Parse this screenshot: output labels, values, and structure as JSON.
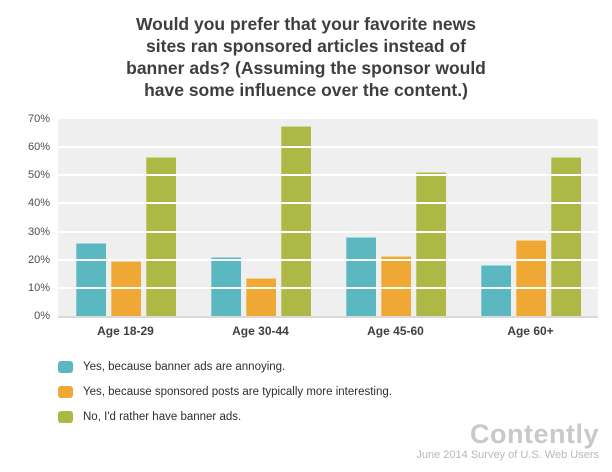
{
  "header": {
    "title_lines": [
      "Would you prefer that your favorite news",
      "sites ran sponsored articles instead of",
      "banner ads? (Assuming the sponsor would",
      "have some influence over the content.)"
    ]
  },
  "chart_data": {
    "type": "bar",
    "title": "Would you prefer that your favorite news sites ran sponsored articles instead of banner ads? (Assuming the sponsor would have some influence over the content.)",
    "categories": [
      "Age 18-29",
      "Age 30-44",
      "Age 45-60",
      "Age 60+"
    ],
    "series": [
      {
        "name": "Yes, because banner ads are annoying.",
        "color": "#5cb8c0",
        "values": [
          26,
          21,
          28,
          18
        ]
      },
      {
        "name": "Yes, because sponsored posts are typically more interesting.",
        "color": "#f0a834",
        "values": [
          19.5,
          13.5,
          21.5,
          27
        ]
      },
      {
        "name": "No, I'd rather have banner ads.",
        "color": "#adb944",
        "values": [
          56.5,
          67.5,
          51,
          56.5
        ]
      }
    ],
    "ylim": [
      0,
      70
    ],
    "yticks": [
      "0%",
      "10%",
      "20%",
      "30%",
      "40%",
      "50%",
      "60%",
      "70%"
    ],
    "grid": true,
    "legend_position": "bottom-left",
    "plot_background": "#efefef"
  },
  "footer": {
    "brand": "Contently",
    "caption": "June 2014 Survey of U.S. Web Users"
  }
}
